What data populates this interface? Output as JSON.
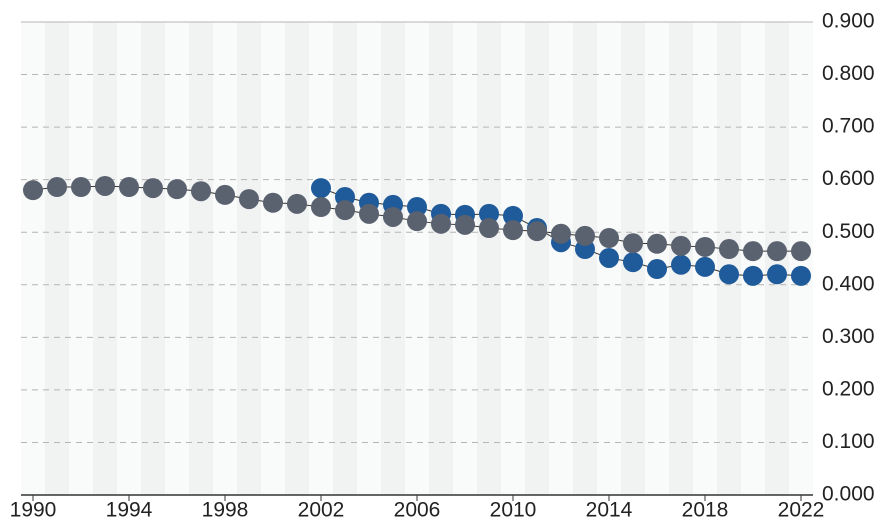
{
  "chart_data": {
    "type": "line",
    "x": [
      1990,
      1991,
      1992,
      1993,
      1994,
      1995,
      1996,
      1997,
      1998,
      1999,
      2000,
      2001,
      2002,
      2003,
      2004,
      2005,
      2006,
      2007,
      2008,
      2009,
      2010,
      2011,
      2012,
      2013,
      2014,
      2015,
      2016,
      2017,
      2018,
      2019,
      2020,
      2021,
      2022
    ],
    "series": [
      {
        "color": "#1f5a9a",
        "values": [
          null,
          null,
          null,
          null,
          null,
          null,
          null,
          null,
          null,
          null,
          null,
          null,
          0.584,
          0.567,
          0.556,
          0.552,
          0.548,
          0.535,
          0.533,
          0.535,
          0.531,
          0.508,
          0.481,
          0.468,
          0.451,
          0.443,
          0.43,
          0.438,
          0.434,
          0.42,
          0.417,
          0.42,
          0.417
        ]
      },
      {
        "color": "#5a6270",
        "values": [
          0.58,
          0.586,
          0.586,
          0.588,
          0.586,
          0.584,
          0.582,
          0.578,
          0.571,
          0.563,
          0.556,
          0.554,
          0.548,
          0.542,
          0.535,
          0.529,
          0.521,
          0.516,
          0.514,
          0.508,
          0.504,
          0.502,
          0.497,
          0.493,
          0.489,
          0.479,
          0.478,
          0.474,
          0.472,
          0.468,
          0.464,
          0.464,
          0.464
        ]
      }
    ],
    "xlim": [
      1989.5,
      2022.5
    ],
    "xticks": [
      1990,
      1994,
      1998,
      2002,
      2006,
      2010,
      2014,
      2018,
      2022
    ],
    "ylim": [
      0,
      0.9
    ],
    "yticks": [
      {
        "value": 0,
        "label": "0.000"
      },
      {
        "value": 0.1,
        "label": "0.100"
      },
      {
        "value": 0.2,
        "label": "0.200"
      },
      {
        "value": 0.3,
        "label": "0.300"
      },
      {
        "value": 0.4,
        "label": "0.400"
      },
      {
        "value": 0.5,
        "label": "0.500"
      },
      {
        "value": 0.6,
        "label": "0.600"
      },
      {
        "value": 0.7,
        "label": "0.700"
      },
      {
        "value": 0.8,
        "label": "0.800"
      },
      {
        "value": 0.9,
        "label": "0.900"
      }
    ],
    "grid": true
  }
}
